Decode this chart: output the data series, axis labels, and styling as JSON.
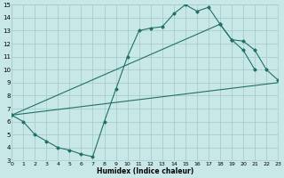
{
  "xlabel": "Humidex (Indice chaleur)",
  "xlim": [
    0,
    23
  ],
  "ylim": [
    3,
    15
  ],
  "xticks": [
    0,
    1,
    2,
    3,
    4,
    5,
    6,
    7,
    8,
    9,
    10,
    11,
    12,
    13,
    14,
    15,
    16,
    17,
    18,
    19,
    20,
    21,
    22,
    23
  ],
  "yticks": [
    3,
    4,
    5,
    6,
    7,
    8,
    9,
    10,
    11,
    12,
    13,
    14,
    15
  ],
  "bg_color": "#c8e8e8",
  "grid_color": "#a8cccc",
  "line_color": "#217068",
  "line1_x": [
    0,
    1,
    2,
    3,
    4,
    5,
    6,
    7,
    8,
    9,
    10,
    11,
    12,
    13,
    14,
    15,
    16,
    17,
    18,
    19,
    20,
    21
  ],
  "line1_y": [
    6.5,
    6.0,
    5.0,
    4.5,
    4.0,
    3.8,
    3.5,
    3.3,
    6.0,
    8.5,
    11.0,
    13.0,
    13.2,
    13.3,
    14.3,
    15.0,
    14.5,
    14.8,
    13.5,
    12.3,
    11.5,
    10.0
  ],
  "line2_x": [
    0,
    23
  ],
  "line2_y": [
    6.5,
    9.0
  ],
  "line3_x": [
    0,
    18,
    19,
    20,
    21,
    22,
    23
  ],
  "line3_y": [
    6.5,
    13.5,
    12.3,
    12.2,
    11.5,
    10.0,
    9.2
  ]
}
